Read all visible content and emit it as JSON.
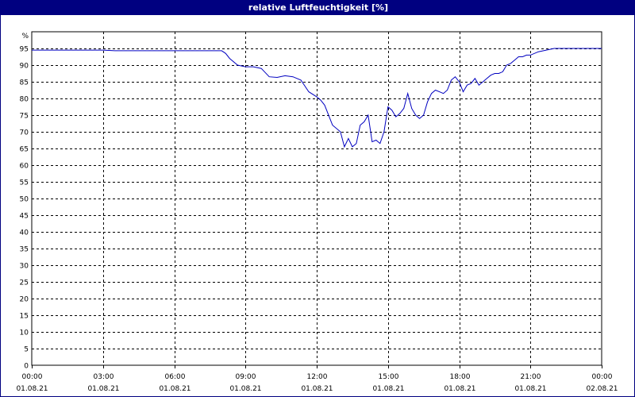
{
  "window": {
    "title": "relative Luftfeuchtigkeit [%]"
  },
  "chart_data": {
    "type": "line",
    "title": "relative Luftfeuchtigkeit [%]",
    "ylabel": "%",
    "ylim": [
      0,
      100
    ],
    "yticks": [
      0,
      5,
      10,
      15,
      20,
      25,
      30,
      35,
      40,
      45,
      50,
      55,
      60,
      65,
      70,
      75,
      80,
      85,
      90,
      95
    ],
    "xlim": [
      "01.08.21 00:00",
      "02.08.21 00:00"
    ],
    "xticks": [
      {
        "time": "00:00",
        "date": "01.08.21"
      },
      {
        "time": "03:00",
        "date": "01.08.21"
      },
      {
        "time": "06:00",
        "date": "01.08.21"
      },
      {
        "time": "09:00",
        "date": "01.08.21"
      },
      {
        "time": "12:00",
        "date": "01.08.21"
      },
      {
        "time": "15:00",
        "date": "01.08.21"
      },
      {
        "time": "18:00",
        "date": "01.08.21"
      },
      {
        "time": "21:00",
        "date": "01.08.21"
      },
      {
        "time": "00:00",
        "date": "02.08.21"
      }
    ],
    "grid": true,
    "line_color": "#0000c0",
    "series": [
      {
        "x": [
          "00:00",
          "03:00",
          "03:30",
          "06:00",
          "08:00",
          "08:10",
          "08:20",
          "08:40",
          "09:00",
          "09:20",
          "09:40",
          "10:00",
          "10:20",
          "10:40",
          "11:00",
          "11:20",
          "11:40",
          "12:00",
          "12:10",
          "12:20",
          "12:40",
          "13:00",
          "13:10",
          "13:20",
          "13:30",
          "13:40",
          "13:50",
          "14:00",
          "14:10",
          "14:20",
          "14:30",
          "14:40",
          "14:50",
          "15:00",
          "15:10",
          "15:20",
          "15:30",
          "15:40",
          "15:50",
          "16:00",
          "16:10",
          "16:20",
          "16:30",
          "16:40",
          "16:50",
          "17:00",
          "17:10",
          "17:20",
          "17:30",
          "17:40",
          "17:50",
          "18:00",
          "18:10",
          "18:20",
          "18:30",
          "18:40",
          "18:50",
          "19:00",
          "19:10",
          "19:20",
          "19:30",
          "19:40",
          "19:50",
          "20:00",
          "20:10",
          "20:20",
          "20:30",
          "20:40",
          "20:50",
          "21:00",
          "21:20",
          "21:40",
          "22:00",
          "22:20",
          "22:40",
          "23:00",
          "23:20",
          "23:40",
          "00:00"
        ],
        "values": [
          94.5,
          94.5,
          94.3,
          94.3,
          94.3,
          93.5,
          92,
          90,
          89.5,
          89.5,
          89,
          86.5,
          86.3,
          86.8,
          86.5,
          85.5,
          82,
          80.5,
          79.5,
          78,
          72,
          70,
          65.5,
          68,
          65.5,
          66.5,
          72,
          73,
          75,
          67,
          67.5,
          66.5,
          70,
          77.5,
          76.5,
          74.5,
          75.5,
          77,
          81.5,
          77,
          75,
          74,
          75,
          79,
          81.5,
          82.5,
          82,
          81.5,
          82.5,
          85.5,
          86.5,
          85,
          82,
          84,
          84.5,
          86,
          84,
          85,
          86,
          87,
          87.5,
          87.5,
          88,
          90,
          90.5,
          91.5,
          92.5,
          92.5,
          93,
          93,
          94,
          94.5,
          95,
          95,
          95,
          95,
          95,
          95,
          95
        ]
      }
    ]
  }
}
